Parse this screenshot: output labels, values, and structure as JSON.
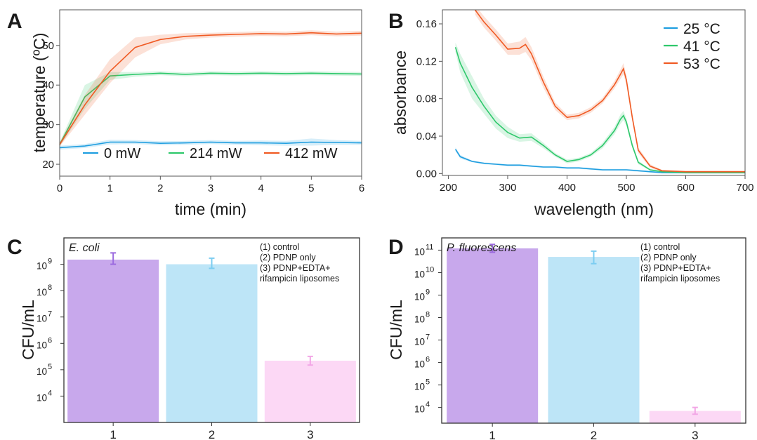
{
  "panels": {
    "A": {
      "letter": "A"
    },
    "B": {
      "letter": "B"
    },
    "C": {
      "letter": "C"
    },
    "D": {
      "letter": "D"
    }
  },
  "chart_data": [
    {
      "id": "A",
      "type": "line",
      "xlabel": "time (min)",
      "ylabel": "temperature (ºC)",
      "xlim": [
        0,
        6
      ],
      "ylim": [
        17,
        59
      ],
      "xticks": [
        "0",
        "1",
        "2",
        "3",
        "4",
        "5",
        "6"
      ],
      "yticks": [
        "20",
        "30",
        "40",
        "50"
      ],
      "legend_position": "bottom",
      "grid": false,
      "series": [
        {
          "name": "0 mW",
          "color": "#1f9ee0",
          "x": [
            0,
            0.5,
            1,
            1.5,
            2,
            2.5,
            3,
            3.5,
            4,
            4.5,
            5,
            5.5,
            6
          ],
          "values": [
            24.2,
            24.6,
            25.6,
            25.6,
            25.3,
            25.4,
            25.6,
            25.4,
            25.4,
            25.3,
            25.6,
            25.5,
            25.4
          ],
          "err": [
            0.5,
            0.5,
            0.6,
            0.5,
            0.5,
            0.5,
            0.5,
            0.5,
            0.6,
            0.6,
            0.9,
            0.6,
            0.5
          ]
        },
        {
          "name": "214 mW",
          "color": "#2ec86b",
          "x": [
            0,
            0.5,
            1,
            1.5,
            2,
            2.5,
            3,
            3.5,
            4,
            4.5,
            5,
            5.5,
            6
          ],
          "values": [
            25.0,
            37.0,
            42.3,
            42.7,
            43.0,
            42.7,
            43.0,
            42.9,
            43.0,
            42.9,
            43.0,
            42.9,
            42.8
          ],
          "err": [
            0.5,
            3.0,
            1.0,
            0.6,
            0.5,
            0.5,
            0.5,
            0.5,
            0.5,
            0.5,
            0.5,
            0.5,
            0.5
          ]
        },
        {
          "name": "412 mW",
          "color": "#f05a23",
          "x": [
            0,
            0.5,
            1,
            1.5,
            2,
            2.5,
            3,
            3.5,
            4,
            4.5,
            5,
            5.5,
            6
          ],
          "values": [
            25.0,
            35.0,
            43.5,
            49.5,
            51.5,
            52.3,
            52.6,
            52.8,
            53.0,
            52.9,
            53.2,
            52.9,
            53.1
          ],
          "err": [
            0.5,
            2.5,
            3.0,
            2.5,
            1.2,
            0.8,
            0.6,
            0.6,
            0.6,
            0.6,
            0.6,
            0.6,
            0.6
          ]
        }
      ]
    },
    {
      "id": "B",
      "type": "line",
      "xlabel": "wavelength (nm)",
      "ylabel": "absorbance",
      "xlim": [
        190,
        700
      ],
      "ylim": [
        -0.002,
        0.175
      ],
      "xticks": [
        "200",
        "300",
        "400",
        "500",
        "600",
        "700"
      ],
      "yticks": [
        "0.00",
        "0.04",
        "0.08",
        "0.12",
        "0.16"
      ],
      "legend_position": "top-right",
      "grid": false,
      "series": [
        {
          "name": "25 °C",
          "color": "#1f9ee0",
          "x": [
            212,
            220,
            240,
            260,
            280,
            300,
            320,
            340,
            360,
            380,
            400,
            420,
            440,
            460,
            480,
            500,
            520,
            540,
            560,
            600,
            650,
            700
          ],
          "values": [
            0.026,
            0.018,
            0.013,
            0.011,
            0.01,
            0.009,
            0.009,
            0.008,
            0.007,
            0.007,
            0.006,
            0.006,
            0.005,
            0.004,
            0.004,
            0.004,
            0.003,
            0.002,
            0.001,
            0.001,
            0.001,
            0.001
          ],
          "err": [
            0.002,
            0.002,
            0.001,
            0.001,
            0.001,
            0.001,
            0.001,
            0.001,
            0.001,
            0.001,
            0.001,
            0.001,
            0.001,
            0.001,
            0.001,
            0.001,
            0.001,
            0.001,
            0.001,
            0.001,
            0.001,
            0.001
          ]
        },
        {
          "name": "41 °C",
          "color": "#2ec86b",
          "x": [
            212,
            220,
            240,
            260,
            280,
            300,
            320,
            340,
            360,
            380,
            400,
            420,
            440,
            460,
            480,
            490,
            495,
            500,
            510,
            520,
            540,
            560,
            600,
            650,
            700
          ],
          "values": [
            0.135,
            0.118,
            0.092,
            0.072,
            0.055,
            0.044,
            0.038,
            0.039,
            0.03,
            0.02,
            0.013,
            0.015,
            0.02,
            0.03,
            0.046,
            0.058,
            0.062,
            0.055,
            0.03,
            0.012,
            0.004,
            0.002,
            0.001,
            0.001,
            0.001
          ],
          "err": [
            0.005,
            0.01,
            0.012,
            0.008,
            0.007,
            0.006,
            0.004,
            0.004,
            0.003,
            0.002,
            0.002,
            0.002,
            0.002,
            0.003,
            0.004,
            0.005,
            0.005,
            0.004,
            0.003,
            0.002,
            0.001,
            0.001,
            0.001,
            0.001,
            0.001
          ]
        },
        {
          "name": "53 °C",
          "color": "#f05a23",
          "x": [
            245,
            260,
            280,
            300,
            320,
            330,
            340,
            360,
            380,
            400,
            420,
            440,
            460,
            480,
            490,
            495,
            500,
            510,
            520,
            540,
            560,
            600,
            650,
            700
          ],
          "values": [
            0.175,
            0.162,
            0.148,
            0.133,
            0.134,
            0.138,
            0.128,
            0.098,
            0.072,
            0.06,
            0.062,
            0.068,
            0.078,
            0.095,
            0.106,
            0.112,
            0.1,
            0.06,
            0.025,
            0.008,
            0.003,
            0.002,
            0.002,
            0.002
          ],
          "err": [
            0.005,
            0.006,
            0.006,
            0.006,
            0.007,
            0.008,
            0.007,
            0.006,
            0.004,
            0.003,
            0.003,
            0.003,
            0.003,
            0.004,
            0.005,
            0.006,
            0.005,
            0.004,
            0.003,
            0.002,
            0.001,
            0.001,
            0.001,
            0.001
          ]
        }
      ]
    },
    {
      "id": "C",
      "type": "bar",
      "label": "E. coli",
      "ylabel": "CFU/mL",
      "log_scale": true,
      "ylim": [
        1000,
        10000000000
      ],
      "categories": [
        "1",
        "2",
        "3"
      ],
      "values": [
        1500000000,
        1000000000,
        220000
      ],
      "err_low": [
        500000000,
        300000000,
        70000
      ],
      "err_high": [
        1200000000,
        700000000,
        100000
      ],
      "colors": [
        "#c8a8ec",
        "#bde5f7",
        "#fcd8f5"
      ],
      "error_colors": [
        "#9c6bdf",
        "#7ccdf1",
        "#f2a6e6"
      ],
      "ytick_labels": [
        {
          "base": "10",
          "exp": "4"
        },
        {
          "base": "10",
          "exp": "5"
        },
        {
          "base": "10",
          "exp": "6"
        },
        {
          "base": "10",
          "exp": "7"
        },
        {
          "base": "10",
          "exp": "8"
        },
        {
          "base": "10",
          "exp": "9"
        }
      ],
      "notes": [
        "(1) control",
        "(2) PDNP only",
        "(3) PDNP+EDTA+",
        "rifampicin liposomes"
      ]
    },
    {
      "id": "D",
      "type": "bar",
      "label": "P. fluorescens",
      "ylabel": "CFU/mL",
      "log_scale": true,
      "ylim": [
        2000,
        350000000000
      ],
      "categories": [
        "1",
        "2",
        "3"
      ],
      "values": [
        120000000000,
        50000000000,
        7000
      ],
      "err_low": [
        40000000000,
        25000000000,
        2000
      ],
      "err_high": [
        60000000000,
        40000000000,
        3000
      ],
      "colors": [
        "#c8a8ec",
        "#bde5f7",
        "#fcd8f5"
      ],
      "error_colors": [
        "#9c6bdf",
        "#7ccdf1",
        "#f2a6e6"
      ],
      "ytick_labels": [
        {
          "base": "10",
          "exp": "4"
        },
        {
          "base": "10",
          "exp": "5"
        },
        {
          "base": "10",
          "exp": "6"
        },
        {
          "base": "10",
          "exp": "7"
        },
        {
          "base": "10",
          "exp": "8"
        },
        {
          "base": "10",
          "exp": "9"
        },
        {
          "base": "10",
          "exp": "10"
        },
        {
          "base": "10",
          "exp": "11"
        }
      ],
      "notes": [
        "(1) control",
        "(2) PDNP only",
        "(3) PDNP+EDTA+",
        "rifampicin liposomes"
      ]
    }
  ]
}
